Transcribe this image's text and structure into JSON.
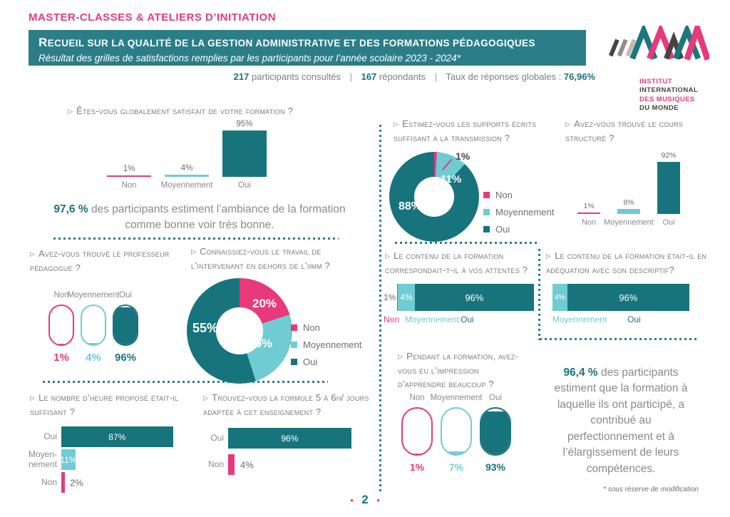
{
  "page": {
    "number": "2",
    "footnote": "* sous réserve de modification"
  },
  "colors": {
    "teal": "#17747d",
    "cyan": "#6fccd2",
    "pink": "#e8397b",
    "banner_teal": "#2b7e88",
    "text_gray": "#8a8a8a"
  },
  "header": {
    "kicker": "MASTER-CLASSES & ATELIERS D’INITIATION",
    "banner_title": "Recueil sur la qualité de la gestion administrative et des formations pédagogiques",
    "banner_subtitle": "Résultat des grilles de satisfactions remplies par les participants pour l’année scolaire 2023 - 2024*",
    "stats": {
      "consulted_value": "217",
      "consulted_label": "participants consultés",
      "separator": "|",
      "respondents_value": "167",
      "respondents_label": "répondants",
      "rate_label": "Taux de réponses globales :",
      "rate_value": "76,96%"
    }
  },
  "logo": {
    "line1": "INSTITUT",
    "line2": "INTERNATIONAL",
    "line3": "DES MUSIQUES",
    "line4": "DU MONDE"
  },
  "highlights": {
    "ambiance_value": "97,6 %",
    "ambiance_text": "des participants estiment l’ambiance de la formation comme bonne voir très bonne.",
    "competences_value": "96,4 %",
    "competences_text": "des participants estiment que la formation à laquelle ils ont participé, a contribué au perfectionnement et à l’élargissement de leurs compétences."
  },
  "chart_data": [
    {
      "id": "satisfaction-globale",
      "type": "bar",
      "title": "Êtes-vous globalement satisfait de votre formation ?",
      "categories": [
        "Non",
        "Moyennement",
        "Oui"
      ],
      "values": [
        1,
        4,
        95
      ],
      "value_labels": [
        "1%",
        "4%",
        "95%"
      ],
      "colors": [
        "#e8397b",
        "#6fccd2",
        "#17747d"
      ],
      "ylim": [
        0,
        100
      ]
    },
    {
      "id": "professeur-pedagogue",
      "type": "pill",
      "title": "Avez-vous trouvé le professeur pédagogue ?",
      "categories": [
        "Non",
        "Moyennement",
        "Oui"
      ],
      "values": [
        1,
        4,
        96
      ],
      "value_labels": [
        "1%",
        "4%",
        "96%"
      ],
      "colors": [
        "#e8397b",
        "#6fccd2",
        "#17747d"
      ]
    },
    {
      "id": "travail-intervenant",
      "type": "donut",
      "title": "Connaissiez-vous le travail de l’intervenant en dehors de l’iimm ?",
      "legend": [
        "Non",
        "Moyennement",
        "Oui"
      ],
      "segments": [
        {
          "label": "Non",
          "value": 20,
          "color": "#e8397b"
        },
        {
          "label": "Moyennement",
          "value": 25,
          "color": "#6fccd2"
        },
        {
          "label": "Oui",
          "value": 55,
          "color": "#17747d"
        }
      ],
      "value_labels": [
        "20%",
        "25%",
        "55%"
      ]
    },
    {
      "id": "supports-ecrits",
      "type": "donut",
      "title": "Estimez-vous les supports écrits suffisant à la transmission ?",
      "legend": [
        "Non",
        "Moyennement",
        "Oui"
      ],
      "segments": [
        {
          "label": "Non",
          "value": 1,
          "color": "#e8397b"
        },
        {
          "label": "Moyennement",
          "value": 11,
          "color": "#6fccd2"
        },
        {
          "label": "Oui",
          "value": 88,
          "color": "#17747d"
        }
      ],
      "value_labels": [
        "1%",
        "11%",
        "88%"
      ]
    },
    {
      "id": "cours-structure",
      "type": "bar",
      "title": "Avez-vous trouvé le cours structuré ?",
      "categories": [
        "Non",
        "Moyennement",
        "Oui"
      ],
      "values": [
        1,
        8,
        92
      ],
      "value_labels": [
        "1%",
        "8%",
        "92%"
      ],
      "colors": [
        "#e8397b",
        "#6fccd2",
        "#17747d"
      ],
      "ylim": [
        0,
        100
      ]
    },
    {
      "id": "contenu-attentes",
      "type": "stacked-bar",
      "title": "Le contenu de la formation correspondait-t-il à vos attentes ?",
      "segments": [
        {
          "label": "Non",
          "value": 1,
          "color": "#e8397b",
          "value_label": "1%"
        },
        {
          "label": "Moyennement",
          "value": 4,
          "color": "#6fccd2",
          "value_label": "4%"
        },
        {
          "label": "Oui",
          "value": 96,
          "color": "#17747d",
          "value_label": "96%"
        }
      ]
    },
    {
      "id": "adequation-descriptif",
      "type": "stacked-bar",
      "title": "Le contenu de la formation était-il en adéquation avec son descriptif?",
      "segments": [
        {
          "label": "Moyennement",
          "value": 4,
          "color": "#6fccd2",
          "value_label": "4%"
        },
        {
          "label": "Oui",
          "value": 96,
          "color": "#17747d",
          "value_label": "96%"
        }
      ]
    },
    {
      "id": "nombre-heures",
      "type": "hbar",
      "title": "Le nombre d’heure proposé était-il suffisant ?",
      "categories": [
        "Oui",
        "Moyen- nement",
        "Non"
      ],
      "values": [
        87,
        11,
        2
      ],
      "value_labels": [
        "87%",
        "11%",
        "2%"
      ],
      "colors": [
        "#17747d",
        "#6fccd2",
        "#e8397b"
      ]
    },
    {
      "id": "formule-5-6h",
      "type": "hbar",
      "title": "Trouvez-vous la formule 5 à 6h/ jours adaptée à cet enseignement ?",
      "categories": [
        "Oui",
        "Non"
      ],
      "values": [
        96,
        4
      ],
      "value_labels": [
        "96%",
        "4%"
      ],
      "colors": [
        "#17747d",
        "#e8397b"
      ]
    },
    {
      "id": "apprendre-beaucoup",
      "type": "pill",
      "title": "Pendant la formation, avez-vous eu l’impression d’apprendre beaucoup ?",
      "categories": [
        "Non",
        "Moyennement",
        "Oui"
      ],
      "values": [
        1,
        7,
        93
      ],
      "value_labels": [
        "1%",
        "7%",
        "93%"
      ],
      "colors": [
        "#e8397b",
        "#6fccd2",
        "#17747d"
      ]
    }
  ]
}
